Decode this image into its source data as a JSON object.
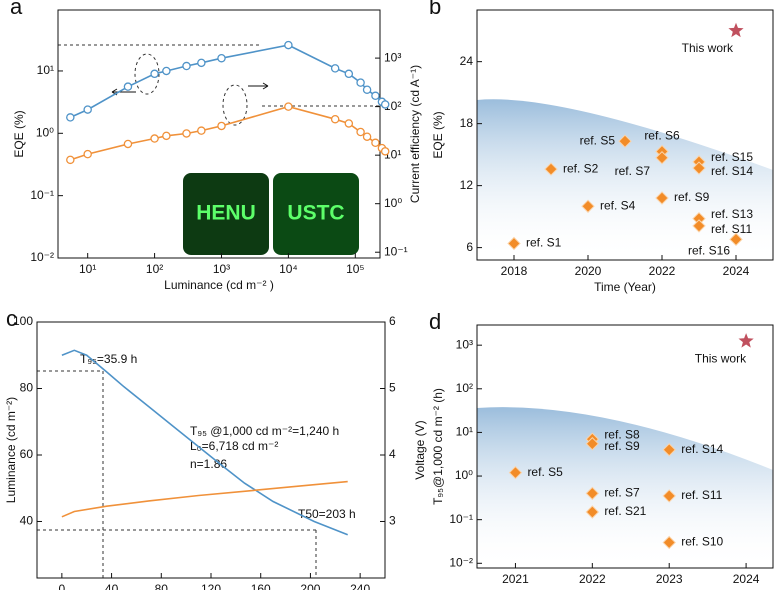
{
  "chart_data": [
    {
      "type": "line",
      "panel_label": "a",
      "x_label": "Luminance (cd m⁻² )",
      "y_label": "EQE (%)",
      "y2_label": "Current efficiency (cd A⁻¹)",
      "log_x": true,
      "log_y": true,
      "log_y2": true,
      "xlim": [
        3.6,
        234000
      ],
      "ylim": [
        0.01,
        95
      ],
      "y2lim": [
        0.076,
        9800
      ],
      "xticks": [
        {
          "value": 10,
          "label": "10¹"
        },
        {
          "value": 100,
          "label": "10²"
        },
        {
          "value": 1000,
          "label": "10³"
        },
        {
          "value": 10000,
          "label": "10⁴"
        },
        {
          "value": 100000,
          "label": "10⁵"
        }
      ],
      "yticks": [
        {
          "value": 0.01,
          "label": "10⁻²"
        },
        {
          "value": 0.1,
          "label": "10⁻¹"
        },
        {
          "value": 1,
          "label": "10⁰"
        },
        {
          "value": 10,
          "label": "10¹"
        }
      ],
      "y2ticks": [
        {
          "value": 0.1,
          "label": "10⁻¹"
        },
        {
          "value": 1,
          "label": "10⁰"
        },
        {
          "value": 10,
          "label": "10¹"
        },
        {
          "value": 100,
          "label": "10²"
        },
        {
          "value": 1000,
          "label": "10³"
        }
      ],
      "inset_text": [
        "HENU",
        "USTC"
      ],
      "series": [
        {
          "color": "#4f93c8",
          "axis": "y",
          "x": [
            5.5,
            10,
            40,
            100,
            150,
            300,
            500,
            1000,
            10000,
            50000,
            80000,
            120000,
            150000,
            200000,
            250000,
            280000
          ],
          "values": [
            1.8,
            2.4,
            5.6,
            9,
            10,
            12,
            13.5,
            16,
            26,
            11,
            9,
            6.5,
            5,
            4,
            3.2,
            2.9
          ]
        },
        {
          "color": "#f0913a",
          "axis": "y2",
          "x": [
            5.5,
            10,
            40,
            100,
            150,
            300,
            500,
            1000,
            10000,
            50000,
            80000,
            120000,
            150000,
            200000,
            250000,
            280000
          ],
          "values": [
            8,
            10.5,
            17,
            22,
            25,
            28,
            32,
            40,
            100,
            55,
            45,
            30,
            24,
            18,
            14,
            12
          ]
        }
      ]
    },
    {
      "type": "scatter",
      "panel_label": "b",
      "x_label": "Time (Year)",
      "y_label": "EQE (%)",
      "xlim": [
        2017,
        2025
      ],
      "ylim": [
        4.8,
        29
      ],
      "xticks": [
        2018,
        2020,
        2022,
        2024
      ],
      "yticks": [
        6,
        12,
        18,
        24
      ],
      "series": [
        {
          "color": "#f28c28",
          "marker": "diamond",
          "x": [
            2018,
            2019,
            2020,
            2021,
            2022,
            2022,
            2022,
            2023,
            2023,
            2023,
            2023,
            2024
          ],
          "values": [
            6.4,
            13.6,
            10,
            16.3,
            15.3,
            14.7,
            10.8,
            14.3,
            13.7,
            8.8,
            8.1,
            6.8
          ],
          "labels": [
            "ref. S1",
            "ref. S2",
            "ref. S4",
            "ref. S5",
            "ref. S6",
            "ref. S7",
            "ref. S9",
            "ref. S15",
            "ref. S14",
            "ref. S13",
            "ref. S11",
            "ref. S16"
          ]
        },
        {
          "color": "#c0505e",
          "marker": "star",
          "x": [
            2024
          ],
          "values": [
            27
          ],
          "labels": [
            "This work"
          ]
        }
      ]
    },
    {
      "type": "line",
      "panel_label": "c",
      "y_label": "Luminance (cd m⁻²)",
      "y2_label": "Voltage (V)",
      "xlim": [
        -20,
        260
      ],
      "ylim": [
        23,
        100
      ],
      "y2lim": [
        2.15,
        6
      ],
      "xticks": [
        0,
        40,
        80,
        120,
        160,
        200,
        240
      ],
      "yticks": [
        40,
        60,
        80,
        100
      ],
      "y2ticks": [
        3,
        4,
        5,
        6
      ],
      "annotations": [
        "T₉₅=35.9 h",
        "T₉₅ @1,000 cd m⁻²=1,240 h",
        "L₀=6,718 cd m⁻²",
        "n=1.86",
        "T50=203 h"
      ],
      "series": [
        {
          "color": "#4f93c8",
          "axis": "y",
          "x": [
            0,
            10,
            20,
            36,
            50,
            70,
            90,
            110,
            130,
            147,
            170,
            203,
            230
          ],
          "values": [
            90,
            91.5,
            90,
            85,
            80.5,
            74.5,
            68.5,
            62.5,
            56.5,
            51.5,
            46,
            40,
            36
          ]
        },
        {
          "color": "#f0913a",
          "axis": "y2",
          "x": [
            0,
            10,
            36,
            70,
            110,
            150,
            190,
            230
          ],
          "values": [
            3.07,
            3.15,
            3.23,
            3.31,
            3.39,
            3.46,
            3.53,
            3.6
          ]
        }
      ]
    },
    {
      "type": "scatter",
      "panel_label": "d",
      "y_label": "T₉₅@1,000 cd m⁻² (h)",
      "log_y": true,
      "xlim": [
        2020.5,
        2024.35
      ],
      "ylim": [
        0.0078,
        2900
      ],
      "xticks": [
        2021,
        2022,
        2023,
        2024
      ],
      "yticks": [
        {
          "value": 0.01,
          "label": "10⁻²"
        },
        {
          "value": 0.1,
          "label": "10⁻¹"
        },
        {
          "value": 1,
          "label": "10⁰"
        },
        {
          "value": 10,
          "label": "10¹"
        },
        {
          "value": 100,
          "label": "10²"
        },
        {
          "value": 1000,
          "label": "10³"
        }
      ],
      "series": [
        {
          "color": "#f28c28",
          "marker": "diamond",
          "x": [
            2021,
            2022,
            2022,
            2023,
            2022,
            2023,
            2022,
            2023
          ],
          "values": [
            1.2,
            7,
            5.5,
            4,
            0.4,
            0.35,
            0.15,
            0.03
          ],
          "labels": [
            "ref. S5",
            "ref. S8",
            "ref. S9",
            "ref. S14",
            "ref. S7",
            "ref. S11",
            "ref. S21",
            "ref. S10"
          ]
        },
        {
          "color": "#c0505e",
          "marker": "star",
          "x": [
            2024
          ],
          "values": [
            1240
          ],
          "labels": [
            "This work"
          ]
        }
      ]
    }
  ]
}
